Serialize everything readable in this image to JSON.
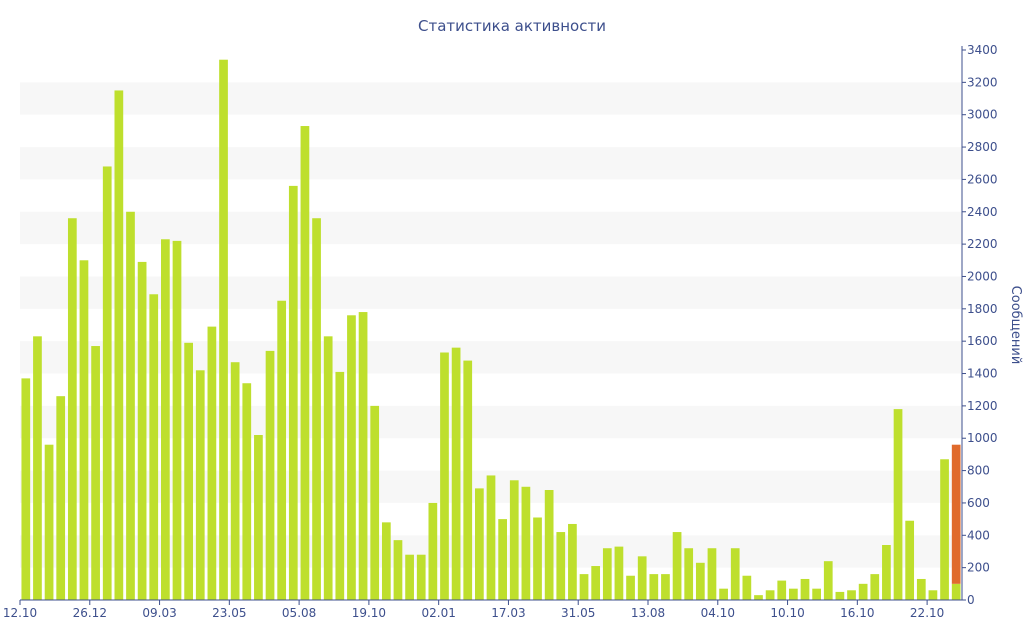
{
  "chart_data": {
    "type": "bar",
    "title": "Статистика активности",
    "ylabel": "Сообщений",
    "xlabel": "",
    "ylim": [
      0,
      3400
    ],
    "y_ticks": [
      0,
      200,
      400,
      600,
      800,
      1000,
      1200,
      1400,
      1600,
      1800,
      2000,
      2200,
      2400,
      2600,
      2800,
      3000,
      3200,
      3400
    ],
    "y_axis_position": "right",
    "grid": "alternating horizontal bands",
    "x_tick_labels": [
      {
        "label": "12.10",
        "index": 0
      },
      {
        "label": "26.12",
        "index": 6
      },
      {
        "label": "09.03",
        "index": 12
      },
      {
        "label": "23.05",
        "index": 18
      },
      {
        "label": "05.08",
        "index": 24
      },
      {
        "label": "19.10",
        "index": 30
      },
      {
        "label": "02.01",
        "index": 36
      },
      {
        "label": "17.03",
        "index": 42
      },
      {
        "label": "31.05",
        "index": 48
      },
      {
        "label": "13.08",
        "index": 54
      },
      {
        "label": "04.10",
        "index": 60
      },
      {
        "label": "10.10",
        "index": 66
      },
      {
        "label": "16.10",
        "index": 72
      },
      {
        "label": "22.10",
        "index": 78
      }
    ],
    "series": [
      {
        "color": "#bedf2d",
        "values": [
          1370,
          1630,
          960,
          1260,
          2360,
          2100,
          1570,
          2680,
          3150,
          2400,
          2090,
          1890,
          2230,
          2220,
          1590,
          1420,
          1690,
          3340,
          1470,
          1340,
          1020,
          1540,
          1850,
          2560,
          2930,
          2360,
          1630,
          1410,
          1760,
          1780,
          1200,
          480,
          370,
          280,
          280,
          600,
          1530,
          1560,
          1480,
          690,
          770,
          500,
          740,
          700,
          510,
          680,
          420,
          470,
          160,
          210,
          320,
          330,
          150,
          270,
          160,
          160,
          420,
          320,
          230,
          320,
          70,
          320,
          150,
          30,
          60,
          120,
          70,
          130,
          70,
          240,
          50,
          60,
          100,
          160,
          340,
          1180,
          490,
          130,
          60,
          870,
          100
        ]
      },
      {
        "color": "#e06a2c",
        "values": [
          0,
          0,
          0,
          0,
          0,
          0,
          0,
          0,
          0,
          0,
          0,
          0,
          0,
          0,
          0,
          0,
          0,
          0,
          0,
          0,
          0,
          0,
          0,
          0,
          0,
          0,
          0,
          0,
          0,
          0,
          0,
          0,
          0,
          0,
          0,
          0,
          0,
          0,
          0,
          0,
          0,
          0,
          0,
          0,
          0,
          0,
          0,
          0,
          0,
          0,
          0,
          0,
          0,
          0,
          0,
          0,
          0,
          0,
          0,
          0,
          0,
          0,
          0,
          0,
          0,
          0,
          0,
          0,
          0,
          0,
          0,
          0,
          0,
          0,
          0,
          0,
          0,
          0,
          0,
          0,
          860
        ]
      }
    ],
    "colors": {
      "title": "#3d4f8c",
      "axis": "#3d4f8c",
      "band": "#f7f7f7"
    }
  }
}
